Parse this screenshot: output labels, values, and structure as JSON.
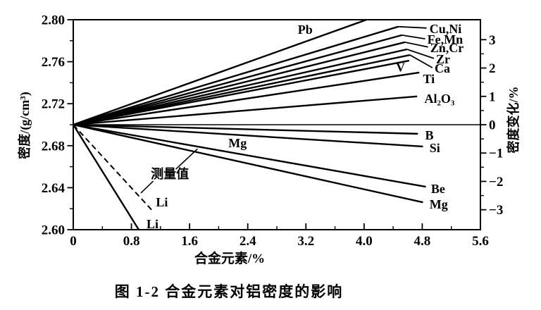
{
  "figure": {
    "caption": "图 1-2  合金元素对铝密度的影响",
    "xlabel": "合金元素/%",
    "ylabel_left": "密度/(g/cm³)",
    "ylabel_right": "密度变化/%"
  },
  "chart_data": {
    "type": "line",
    "title": "图 1-2 合金元素对铝密度的影响",
    "xlabel": "合金元素/%",
    "ylabel_left": "密度/(g/cm³)",
    "ylabel_right": "密度变化/%",
    "xlim": [
      0,
      5.6
    ],
    "ylim_left": [
      2.6,
      2.8
    ],
    "ylim_right_pct": [
      -3.7,
      3.7
    ],
    "origin_density": 2.7,
    "grid": false,
    "x_ticks": [
      0,
      0.8,
      1.6,
      2.4,
      3.2,
      4.0,
      4.8,
      5.6
    ],
    "x_tick_labels": [
      "0",
      "0.8",
      "1.6",
      "2.4",
      "3.2",
      "4.0",
      "4.8",
      "5.6"
    ],
    "x_minor_ticks": [
      0.4,
      1.2,
      2.0,
      2.8,
      3.6,
      4.4,
      5.2
    ],
    "y_ticks_left": [
      2.8,
      2.76,
      2.72,
      2.68,
      2.64,
      2.6
    ],
    "y_tick_labels_left": [
      "2.80",
      "2.76",
      "2.72",
      "2.68",
      "2.64",
      "2.60"
    ],
    "y_minor_ticks_left": [
      2.78,
      2.74,
      2.7,
      2.66,
      2.62
    ],
    "y_ticks_right": [
      3,
      2,
      1,
      0,
      -1,
      -2,
      -3
    ],
    "y_tick_labels_right": [
      "3",
      "2",
      "1",
      "0",
      "−1",
      "−2",
      "−3"
    ],
    "y_minor_ticks_right": [
      2.5,
      1.5,
      0.5,
      -0.5,
      -1.5,
      -2.5
    ],
    "zero_line": {
      "pct": 0,
      "x_range": [
        0,
        5.6
      ]
    },
    "series": [
      {
        "name": "Pb",
        "points": [
          [
            0,
            0
          ],
          [
            4.03,
            3.7
          ]
        ],
        "label": {
          "text": "Pb",
          "x": 3.19,
          "pct": 3.36,
          "anchor": "middle"
        }
      },
      {
        "name": "Cu,Ni",
        "points": [
          [
            0,
            0
          ],
          [
            4.47,
            3.46
          ]
        ],
        "leader": [
          [
            4.47,
            3.46
          ],
          [
            4.86,
            3.41
          ]
        ],
        "label": {
          "text": "Cu,Ni",
          "x": 4.9,
          "pct": 3.38,
          "anchor": "start"
        }
      },
      {
        "name": "Fe,Mn",
        "points": [
          [
            0,
            0
          ],
          [
            4.52,
            3.16
          ]
        ],
        "leader": [
          [
            4.52,
            3.16
          ],
          [
            4.84,
            3.03
          ]
        ],
        "label": {
          "text": "Fe,Mn",
          "x": 4.87,
          "pct": 3.01,
          "anchor": "start"
        }
      },
      {
        "name": "Zn,Cr",
        "points": [
          [
            0,
            0
          ],
          [
            4.56,
            2.91
          ]
        ],
        "leader": [
          [
            4.56,
            2.91
          ],
          [
            4.88,
            2.74
          ]
        ],
        "label": {
          "text": "Zn,Cr",
          "x": 4.91,
          "pct": 2.71,
          "anchor": "start"
        }
      },
      {
        "name": "Zr",
        "points": [
          [
            0,
            0
          ],
          [
            4.59,
            2.66
          ]
        ],
        "leader": [
          [
            4.59,
            2.66
          ],
          [
            4.96,
            2.34
          ]
        ],
        "label": {
          "text": "Zr",
          "x": 4.99,
          "pct": 2.31,
          "anchor": "start"
        }
      },
      {
        "name": "Ca",
        "points": [
          [
            0,
            0
          ],
          [
            4.63,
            2.46
          ]
        ],
        "leader": [
          [
            4.63,
            2.46
          ],
          [
            4.94,
            2.01
          ]
        ],
        "label": {
          "text": "Ca",
          "x": 4.97,
          "pct": 1.99,
          "anchor": "start"
        }
      },
      {
        "name": "V",
        "points": [
          [
            0,
            0
          ],
          [
            4.62,
            2.26
          ]
        ],
        "label": {
          "text": "V",
          "x": 4.5,
          "pct": 2.02,
          "anchor": "middle"
        }
      },
      {
        "name": "Ti",
        "points": [
          [
            0,
            0
          ],
          [
            4.76,
            1.84
          ]
        ],
        "label": {
          "text": "Ti",
          "x": 4.81,
          "pct": 1.62,
          "anchor": "start"
        }
      },
      {
        "name": "Al2O3",
        "points": [
          [
            0,
            0
          ],
          [
            4.73,
            1.0
          ]
        ],
        "label": {
          "text": "Al₂O₃",
          "x": 4.83,
          "pct": 0.92,
          "anchor": "start"
        }
      },
      {
        "name": "B",
        "points": [
          [
            0,
            0
          ],
          [
            4.74,
            -0.32
          ]
        ],
        "label": {
          "text": "B",
          "x": 4.84,
          "pct": -0.37,
          "anchor": "start"
        }
      },
      {
        "name": "Si",
        "points": [
          [
            0,
            0
          ],
          [
            4.81,
            -0.77
          ]
        ],
        "label": {
          "text": "Si",
          "x": 4.9,
          "pct": -0.82,
          "anchor": "start"
        }
      },
      {
        "name": "Be",
        "points": [
          [
            0,
            0
          ],
          [
            4.85,
            -2.19
          ]
        ],
        "label": {
          "text": "Be",
          "x": 4.92,
          "pct": -2.26,
          "anchor": "start"
        }
      },
      {
        "name": "Mg",
        "points": [
          [
            0,
            0
          ],
          [
            4.81,
            -2.74
          ]
        ],
        "label": {
          "text": "Mg",
          "x": 4.9,
          "pct": -2.81,
          "anchor": "start"
        }
      },
      {
        "name": "Li",
        "points": [
          [
            0,
            0
          ],
          [
            0.9,
            -3.7
          ]
        ],
        "label": {
          "text": "Li",
          "x": 1.09,
          "pct": -3.5,
          "anchor": "middle"
        }
      },
      {
        "name": "Li-measured",
        "dashed": true,
        "points": [
          [
            0,
            0
          ],
          [
            1.08,
            -3.01
          ]
        ],
        "label": {
          "text": "Li",
          "x": 1.22,
          "pct": -2.74,
          "anchor": "middle"
        }
      }
    ],
    "annotations": {
      "mid_mg_label": {
        "text": "Mg",
        "x": 2.26,
        "pct": -0.65,
        "anchor": "middle"
      },
      "measured_label": {
        "text": "测量值",
        "x": 1.33,
        "pct": -1.74,
        "anchor": "middle"
      },
      "measured_leaders": [
        [
          [
            1.41,
            -1.57
          ],
          [
            1.71,
            -0.85
          ]
        ],
        [
          [
            1.1,
            -1.99
          ],
          [
            0.93,
            -2.41
          ]
        ]
      ]
    }
  }
}
